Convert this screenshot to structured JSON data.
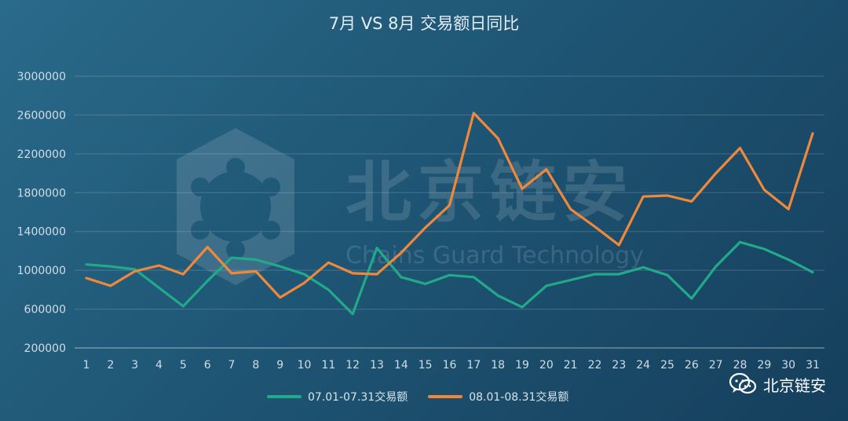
{
  "chart_data": {
    "type": "line",
    "title": "7月 VS 8月 交易额日同比",
    "categories": [
      "1",
      "2",
      "3",
      "4",
      "5",
      "6",
      "7",
      "8",
      "9",
      "10",
      "11",
      "12",
      "13",
      "14",
      "15",
      "16",
      "17",
      "18",
      "19",
      "20",
      "21",
      "22",
      "23",
      "24",
      "25",
      "26",
      "27",
      "28",
      "29",
      "30",
      "31"
    ],
    "yticks": [
      "200000",
      "600000",
      "1000000",
      "1400000",
      "1800000",
      "2200000",
      "2600000",
      "3000000"
    ],
    "ylim": [
      200000,
      3000000
    ],
    "grid": true,
    "legend_position": "bottom",
    "series": [
      {
        "name": "07.01-07.31交易额",
        "color": "#22a98a",
        "values": [
          1060000,
          1040000,
          1010000,
          820000,
          630000,
          890000,
          1130000,
          1110000,
          1040000,
          960000,
          800000,
          550000,
          1230000,
          930000,
          860000,
          950000,
          930000,
          740000,
          620000,
          840000,
          900000,
          960000,
          960000,
          1030000,
          950000,
          710000,
          1040000,
          1290000,
          1220000,
          1110000,
          980000
        ]
      },
      {
        "name": "08.01-08.31交易额",
        "color": "#f0883c",
        "values": [
          920000,
          840000,
          990000,
          1050000,
          960000,
          1240000,
          970000,
          990000,
          720000,
          870000,
          1080000,
          970000,
          960000,
          1180000,
          1440000,
          1670000,
          2620000,
          2360000,
          1840000,
          2040000,
          1630000,
          1450000,
          1260000,
          1760000,
          1770000,
          1710000,
          2000000,
          2260000,
          1830000,
          1630000,
          2410000
        ]
      }
    ]
  },
  "watermark": {
    "text": "北京链安",
    "subtext": "Chains Guard Technology"
  },
  "brand": {
    "icon": "wechat-icon",
    "label": "北京链安"
  }
}
